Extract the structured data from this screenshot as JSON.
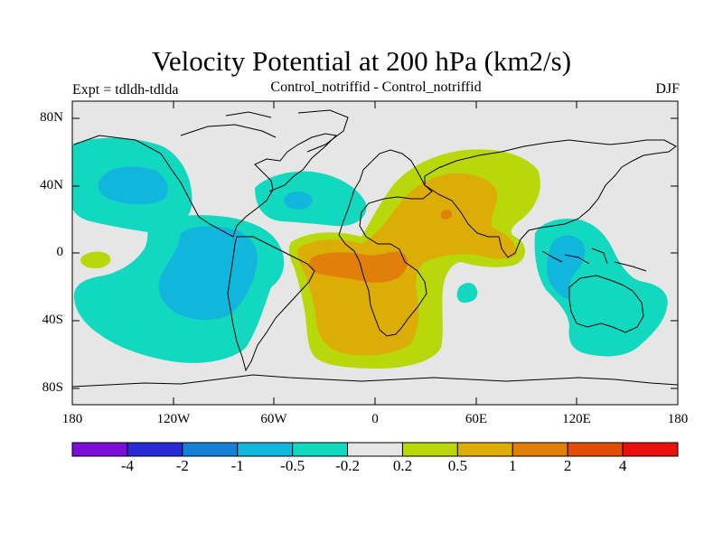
{
  "title": "Velocity Potential at 200 hPa (km2/s)",
  "left_label": "Expt = tdldh-tdlda",
  "center_label": "Control_notriffid - Control_notriffid",
  "right_label": "DJF",
  "lat_ticks": [
    "80N",
    "40N",
    "0",
    "40S",
    "80S"
  ],
  "lon_ticks": [
    "180",
    "120W",
    "60W",
    "0",
    "60E",
    "120E",
    "180"
  ],
  "colorbar": {
    "colors": [
      "#7b0fd8",
      "#2a2ad8",
      "#1481d6",
      "#12b6dd",
      "#12d8c0",
      "#e6e6e6",
      "#b9d80c",
      "#dcad06",
      "#e0800a",
      "#e24e06",
      "#ea1010"
    ],
    "labels": [
      "-4",
      "-2",
      "-1",
      "-0.5",
      "-0.2",
      "0.2",
      "0.5",
      "1",
      "2",
      "4"
    ]
  },
  "colors": {
    "background": "#e6e6e6",
    "neg_02": "#12d8c0",
    "neg_05": "#12b6dd",
    "pos_02": "#b9d80c",
    "pos_05": "#dcad06",
    "pos_1": "#e0800a"
  }
}
